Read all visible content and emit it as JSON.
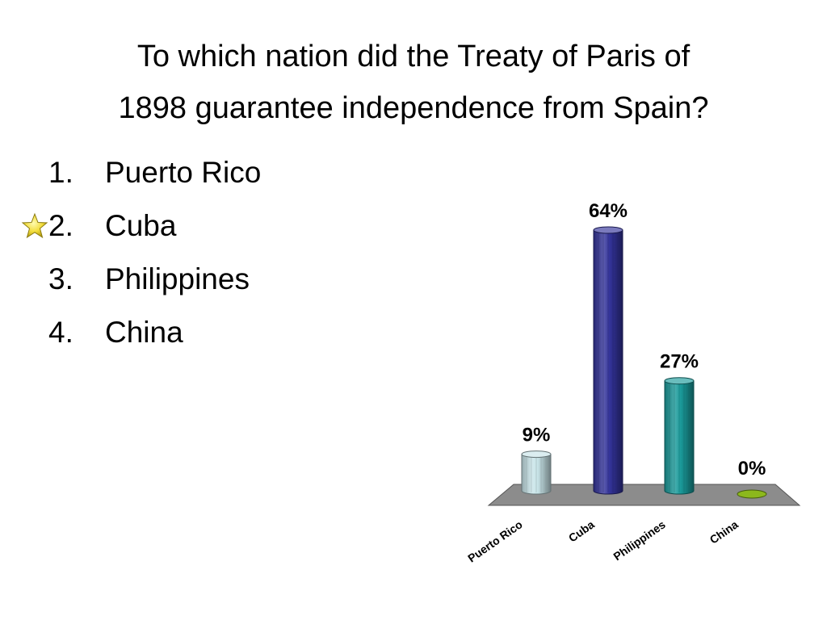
{
  "question": {
    "title_line1": "To which nation did the Treaty of Paris of",
    "title_line2": "1898 guarantee independence from Spain?"
  },
  "answers": [
    {
      "number": "1.",
      "text": "Puerto Rico",
      "correct": false
    },
    {
      "number": "2.",
      "text": "Cuba",
      "correct": true
    },
    {
      "number": "3.",
      "text": "Philippines",
      "correct": false
    },
    {
      "number": "4.",
      "text": "China",
      "correct": false
    }
  ],
  "correct_marker_icon": "star-icon",
  "chart_data": {
    "type": "bar",
    "style": "3d-cylinder",
    "categories": [
      "Puerto Rico",
      "Cuba",
      "Philippines",
      "China"
    ],
    "values": [
      9,
      64,
      27,
      0
    ],
    "value_labels": [
      "9%",
      "64%",
      "27%",
      "0%"
    ],
    "unit": "%",
    "ylim": [
      0,
      64
    ],
    "grid": false,
    "legend": "none",
    "colors": [
      "#c8e4e8",
      "#33339a",
      "#1a9a9a",
      "#8cb81c"
    ],
    "floor_color": "#8c8c8c"
  }
}
